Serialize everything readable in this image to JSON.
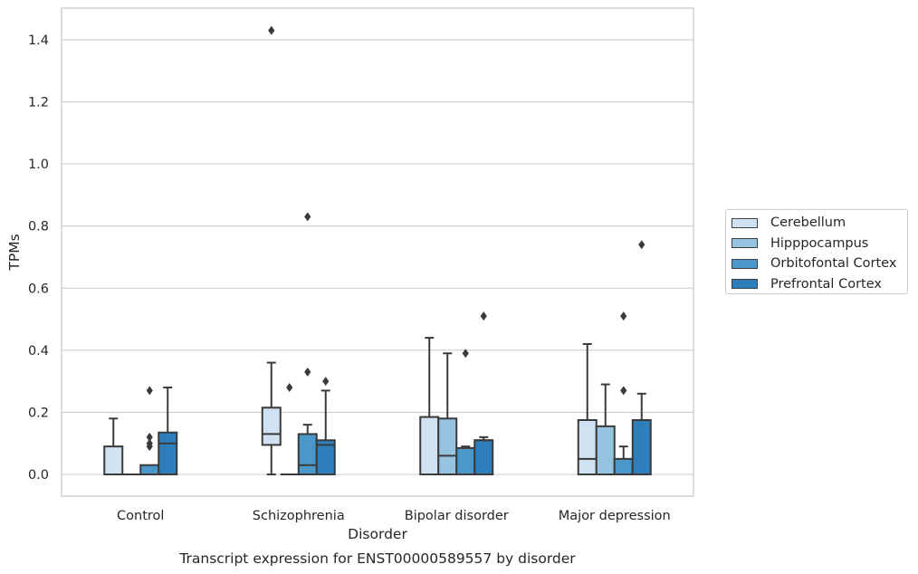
{
  "chart_data": {
    "type": "box",
    "title": "",
    "caption": "Transcript expression for ENST00000589557 by disorder",
    "xlabel": "Disorder",
    "ylabel": "TPMs",
    "ylim": [
      -0.07,
      1.5
    ],
    "yticks": [
      "0.0",
      "0.2",
      "0.4",
      "0.6",
      "0.8",
      "1.0",
      "1.2",
      "1.4"
    ],
    "ytick_values": [
      0,
      0.2,
      0.4,
      0.6,
      0.8,
      1.0,
      1.2,
      1.4
    ],
    "grid": true,
    "legend_position": "right",
    "categories": [
      "Control",
      "Schizophrenia",
      "Bipolar disorder",
      "Major depression"
    ],
    "series": [
      {
        "name": "Cerebellum",
        "color": "#d0e1f2",
        "boxes": [
          {
            "q1": 0,
            "median": 0,
            "q3": 0.09,
            "whisker_low": 0,
            "whisker_high": 0.18,
            "outliers": []
          },
          {
            "q1": 0.095,
            "median": 0.13,
            "q3": 0.215,
            "whisker_low": 0,
            "whisker_high": 0.36,
            "outliers": [
              1.43
            ]
          },
          {
            "q1": 0,
            "median": 0,
            "q3": 0.185,
            "whisker_low": 0,
            "whisker_high": 0.44,
            "outliers": []
          },
          {
            "q1": 0,
            "median": 0.05,
            "q3": 0.175,
            "whisker_low": 0,
            "whisker_high": 0.42,
            "outliers": []
          }
        ]
      },
      {
        "name": "Hipppocampus",
        "color": "#94c4df",
        "boxes": [
          {
            "q1": 0,
            "median": 0,
            "q3": 0,
            "whisker_low": 0,
            "whisker_high": 0,
            "outliers": []
          },
          {
            "q1": 0,
            "median": 0,
            "q3": 0,
            "whisker_low": 0,
            "whisker_high": 0,
            "outliers": [
              0.28
            ]
          },
          {
            "q1": 0,
            "median": 0.06,
            "q3": 0.18,
            "whisker_low": 0,
            "whisker_high": 0.39,
            "outliers": []
          },
          {
            "q1": 0,
            "median": 0,
            "q3": 0.155,
            "whisker_low": 0,
            "whisker_high": 0.29,
            "outliers": []
          }
        ]
      },
      {
        "name": "Orbitofontal Cortex",
        "color": "#4a98c9",
        "boxes": [
          {
            "q1": 0,
            "median": 0,
            "q3": 0.03,
            "whisker_low": 0,
            "whisker_high": 0.03,
            "outliers": [
              0.27,
              0.12,
              0.1,
              0.09
            ]
          },
          {
            "q1": 0,
            "median": 0.03,
            "q3": 0.13,
            "whisker_low": 0,
            "whisker_high": 0.16,
            "outliers": [
              0.33,
              0.83
            ]
          },
          {
            "q1": 0,
            "median": 0,
            "q3": 0.085,
            "whisker_low": 0,
            "whisker_high": 0.09,
            "outliers": [
              0.39
            ]
          },
          {
            "q1": 0,
            "median": 0,
            "q3": 0.05,
            "whisker_low": 0,
            "whisker_high": 0.09,
            "outliers": [
              0.27,
              0.51
            ]
          }
        ]
      },
      {
        "name": "Prefrontal Cortex",
        "color": "#2e7ebc",
        "boxes": [
          {
            "q1": 0,
            "median": 0.1,
            "q3": 0.135,
            "whisker_low": 0,
            "whisker_high": 0.28,
            "outliers": []
          },
          {
            "q1": 0,
            "median": 0.095,
            "q3": 0.11,
            "whisker_low": 0,
            "whisker_high": 0.27,
            "outliers": [
              0.3
            ]
          },
          {
            "q1": 0,
            "median": 0.11,
            "q3": 0.11,
            "whisker_low": 0,
            "whisker_high": 0.12,
            "outliers": [
              0.51
            ]
          },
          {
            "q1": 0,
            "median": 0,
            "q3": 0.175,
            "whisker_low": 0,
            "whisker_high": 0.26,
            "outliers": [
              0.74
            ]
          }
        ]
      }
    ]
  }
}
